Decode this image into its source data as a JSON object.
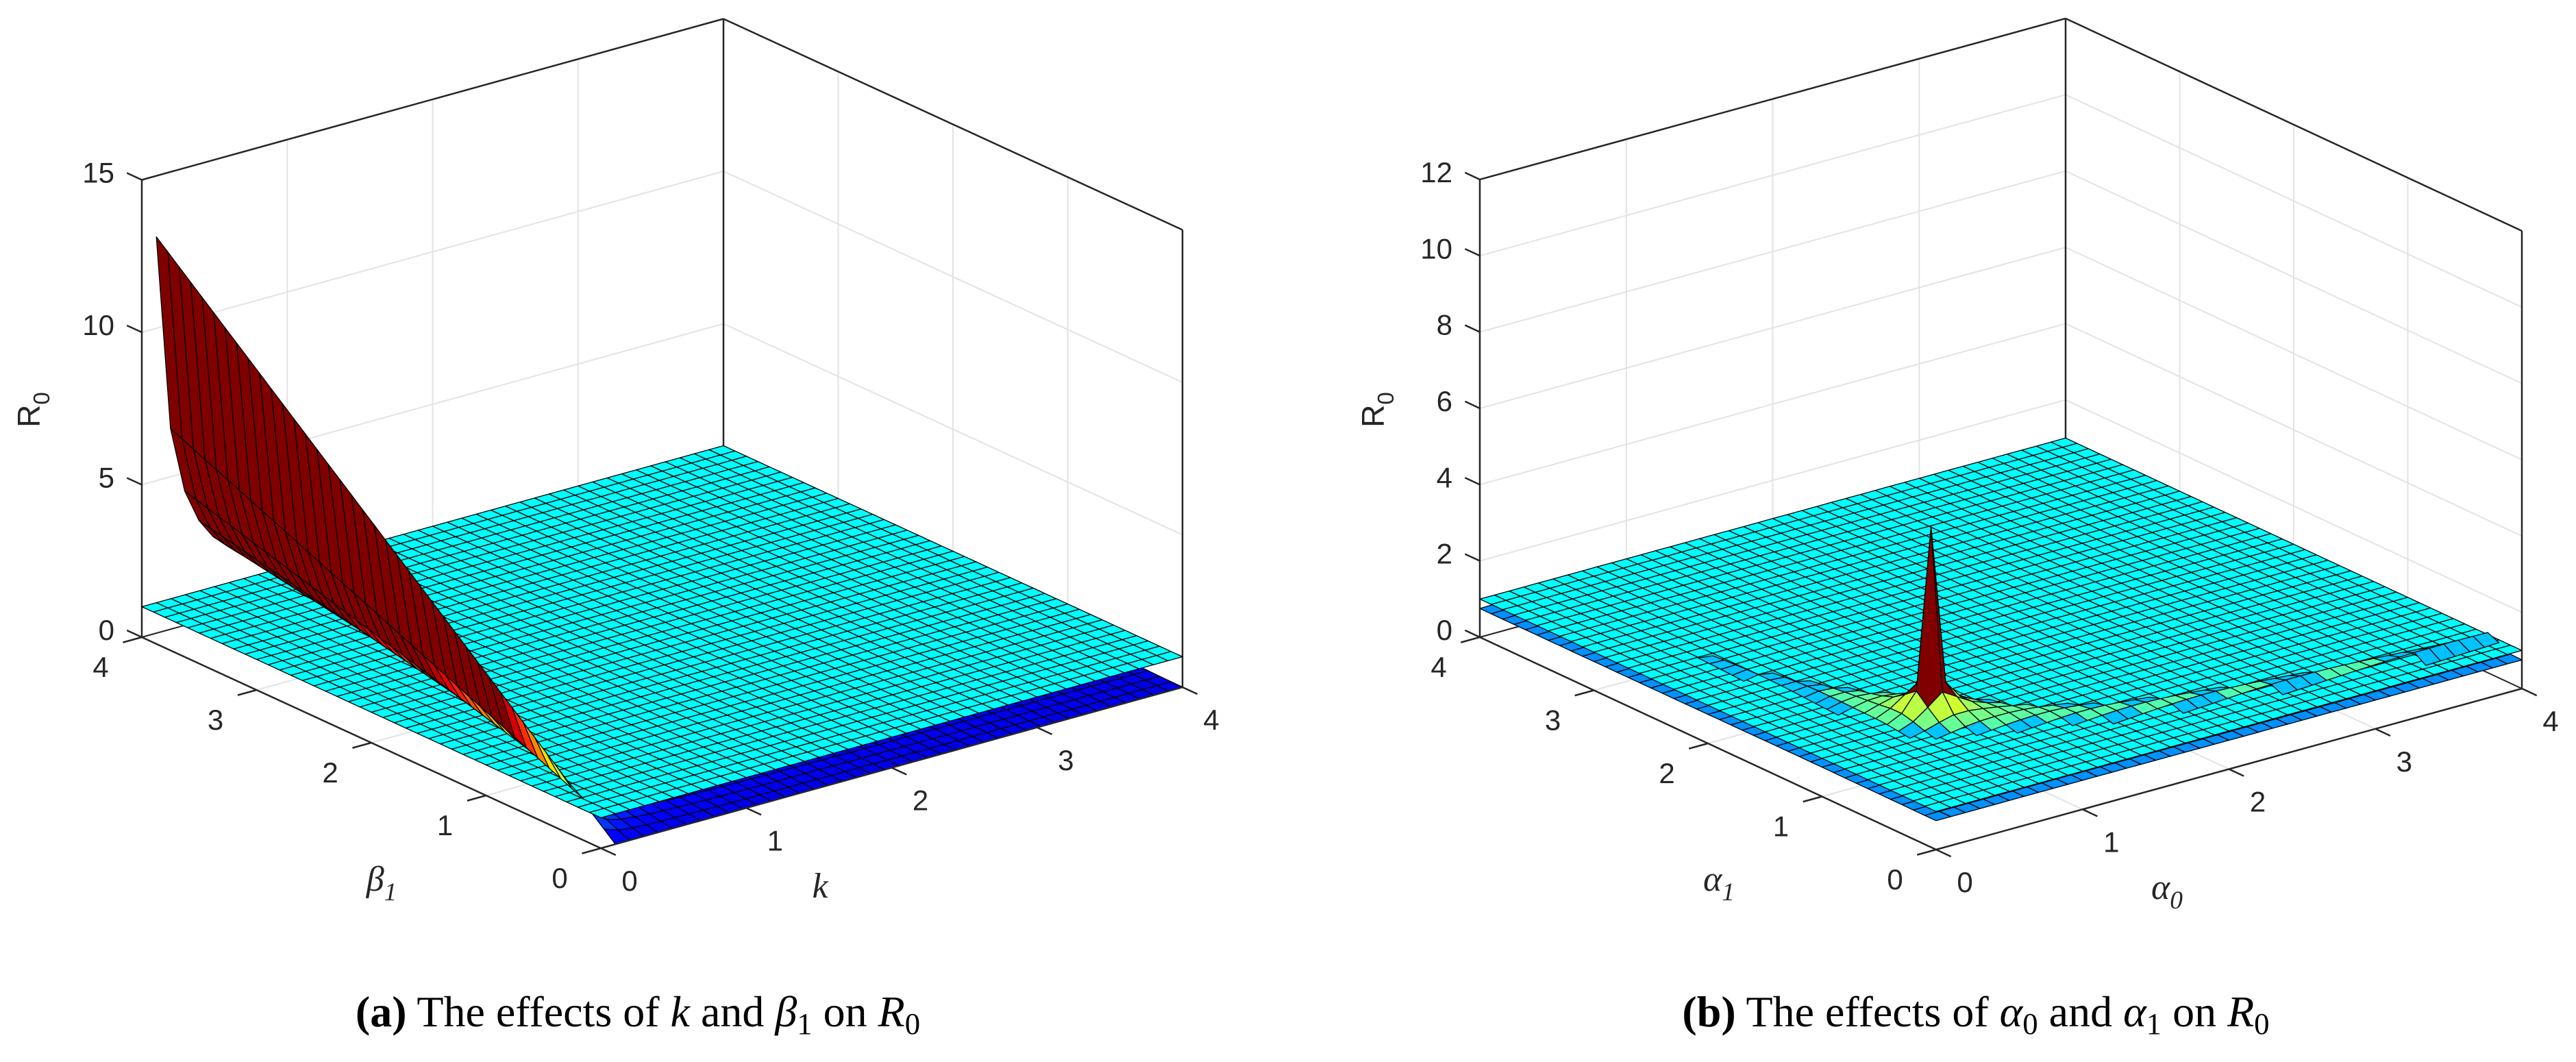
{
  "chart_data": [
    {
      "type": "surface",
      "panel": "a",
      "xlabel": {
        "base": "k",
        "sub": ""
      },
      "ylabel": {
        "base": "β",
        "sub": "1"
      },
      "zlabel": {
        "base": "R",
        "sub": "0"
      },
      "xlim": [
        0,
        4
      ],
      "ylim": [
        0,
        4
      ],
      "zlim": [
        0,
        15
      ],
      "xticks": [
        "0",
        "1",
        "2",
        "3",
        "4"
      ],
      "yticks": [
        "0",
        "1",
        "2",
        "3",
        "4"
      ],
      "zticks": [
        "0",
        "5",
        "10",
        "15"
      ],
      "reference_plane_R0": 1,
      "surface_max": {
        "x": 0.1,
        "y": 4,
        "R0": 13
      },
      "grid": true,
      "colormap": "jet",
      "colors": {
        "plane": "#00ffff",
        "edge": "#000000",
        "axes": "#262626",
        "gridline": "#e3e3e3"
      }
    },
    {
      "type": "surface",
      "panel": "b",
      "xlabel": {
        "base": "α",
        "sub": "0"
      },
      "ylabel": {
        "base": "α",
        "sub": "1"
      },
      "zlabel": {
        "base": "R",
        "sub": "0"
      },
      "xlim": [
        0,
        4
      ],
      "ylim": [
        0,
        4
      ],
      "zlim": [
        0,
        12
      ],
      "xticks": [
        "0",
        "1",
        "2",
        "3",
        "4"
      ],
      "yticks": [
        "0",
        "1",
        "2",
        "3",
        "4"
      ],
      "zticks": [
        "0",
        "2",
        "4",
        "6",
        "8",
        "10",
        "12"
      ],
      "reference_plane_R0": 1,
      "surface_max": {
        "x": 0.9,
        "y": 1.2,
        "R0": 5.6
      },
      "grid": true,
      "colormap": "jet",
      "colors": {
        "plane": "#00ffff",
        "edge": "#000000",
        "axes": "#262626",
        "gridline": "#e3e3e3"
      }
    }
  ],
  "captions": {
    "a": {
      "tag": "(a)",
      "t1": " The effects of ",
      "v1": "k",
      "v1_sub": "",
      "t2": " and ",
      "v2": "β",
      "v2_sub": "1",
      "t3": " on ",
      "v3": "R",
      "v3_sub": "0"
    },
    "b": {
      "tag": "(b)",
      "t1": " The effects of ",
      "v1": "α",
      "v1_sub": "0",
      "t2": " and ",
      "v2": "α",
      "v2_sub": "1",
      "t3": " on ",
      "v3": "R",
      "v3_sub": "0"
    }
  }
}
